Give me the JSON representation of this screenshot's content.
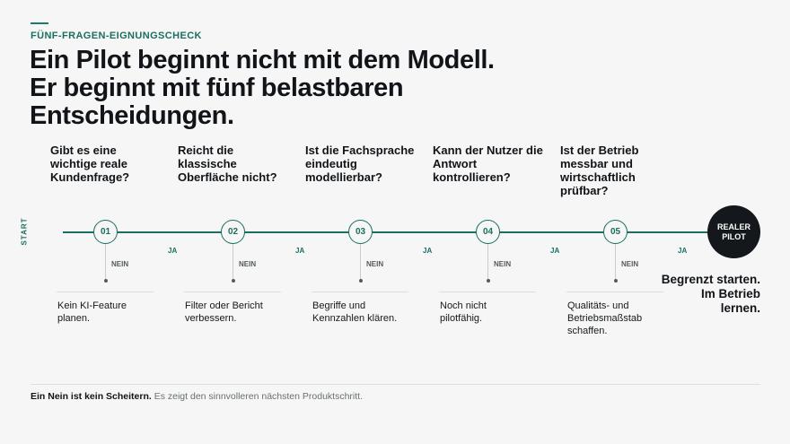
{
  "eyebrow": "FÜNF-FRAGEN-EIGNUNGSCHECK",
  "headline": {
    "line1": "Ein Pilot beginnt nicht mit dem Modell.",
    "line2": "Er beginnt mit fünf belastbaren",
    "line3": "Entscheidungen."
  },
  "start_label": "START",
  "steps": [
    {
      "number": "01",
      "question": "Gibt es eine wichtige reale Kundenfrage?",
      "yes": "JA",
      "no": "NEIN",
      "outcome": "Kein KI-Feature planen."
    },
    {
      "number": "02",
      "question": "Reicht die klassische Oberfläche nicht?",
      "yes": "JA",
      "no": "NEIN",
      "outcome": "Filter oder Bericht verbessern."
    },
    {
      "number": "03",
      "question": "Ist die Fachsprache eindeutig modellierbar?",
      "yes": "JA",
      "no": "NEIN",
      "outcome": "Begriffe und Kennzahlen klären."
    },
    {
      "number": "04",
      "question": "Kann der Nutzer die Antwort kontrollieren?",
      "yes": "JA",
      "no": "NEIN",
      "outcome": "Noch nicht pilotfähig."
    },
    {
      "number": "05",
      "question": "Ist der Betrieb messbar und wirtschaftlich prüfbar?",
      "yes": "JA",
      "no": "NEIN",
      "outcome": "Qualitäts- und Betriebsmaßstab schaffen."
    }
  ],
  "final": {
    "line1": "REALER",
    "line2": "PILOT",
    "outcome": "Begrenzt starten. Im Betrieb lernen."
  },
  "footer": {
    "bold": "Ein Nein ist kein Scheitern.",
    "text": " Es zeigt den sinnvolleren nächsten Produktschritt."
  },
  "colors": {
    "accent": "#1a6f63",
    "dark": "#14181c",
    "background": "#f5f6f5"
  }
}
